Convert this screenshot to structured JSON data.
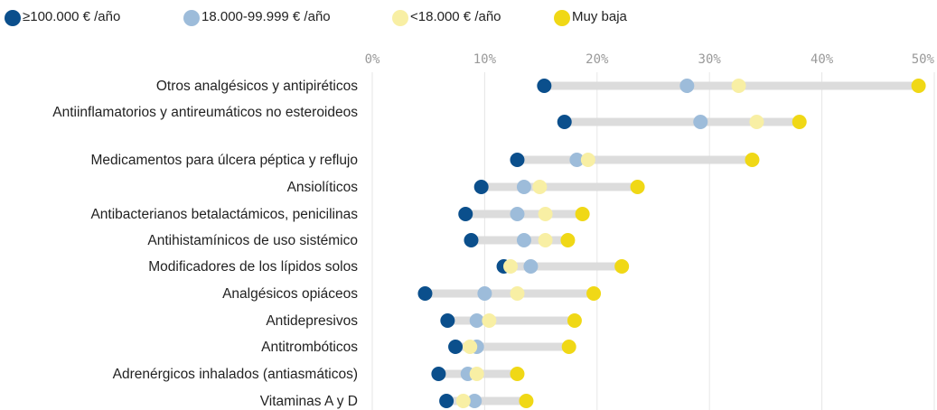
{
  "chart_data": {
    "type": "dot",
    "categories": [
      "Otros analgésicos y antipiréticos",
      "Antiinflamatorios y antireumáticos no esteroideos",
      "Medicamentos para úlcera péptica y reflujo",
      "Ansiolíticos",
      "Antibacterianos betalactámicos, penicilinas",
      "Antihistamínicos de uso sistémico",
      "Modificadores de los lípidos solos",
      "Analgésicos opiáceos",
      "Antidepresivos",
      "Antitrombóticos",
      "Adrenérgicos inhalados (antiasmáticos)",
      "Vitaminas A y D"
    ],
    "series": [
      {
        "name": "≥100.000 € /año",
        "color": "#0b4f8c",
        "values": [
          15.3,
          17.1,
          12.9,
          9.7,
          8.3,
          8.8,
          11.7,
          4.7,
          6.7,
          7.4,
          5.9,
          6.6
        ]
      },
      {
        "name": "18.000-99.999 € /año",
        "color": "#9dbcda",
        "values": [
          28.0,
          29.2,
          18.2,
          13.5,
          12.9,
          13.5,
          14.1,
          10.0,
          9.3,
          9.3,
          8.5,
          9.1
        ]
      },
      {
        "name": "<18.000 € /año",
        "color": "#f8efa4",
        "values": [
          32.6,
          34.2,
          19.2,
          14.9,
          15.4,
          15.4,
          12.3,
          12.9,
          10.4,
          8.7,
          9.3,
          8.1
        ]
      },
      {
        "name": "Muy baja",
        "color": "#f0d816",
        "values": [
          48.6,
          38.0,
          33.8,
          23.6,
          18.7,
          17.4,
          22.2,
          19.7,
          18.0,
          17.5,
          12.9,
          13.7
        ]
      }
    ],
    "xlim": [
      0,
      50
    ],
    "xticks": [
      {
        "value": 0,
        "label": "0%"
      },
      {
        "value": 10,
        "label": "10%"
      },
      {
        "value": 20,
        "label": "20%"
      },
      {
        "value": 30,
        "label": "30%"
      },
      {
        "value": 40,
        "label": "40%"
      },
      {
        "value": 50,
        "label": "50%"
      }
    ],
    "grid": true
  }
}
